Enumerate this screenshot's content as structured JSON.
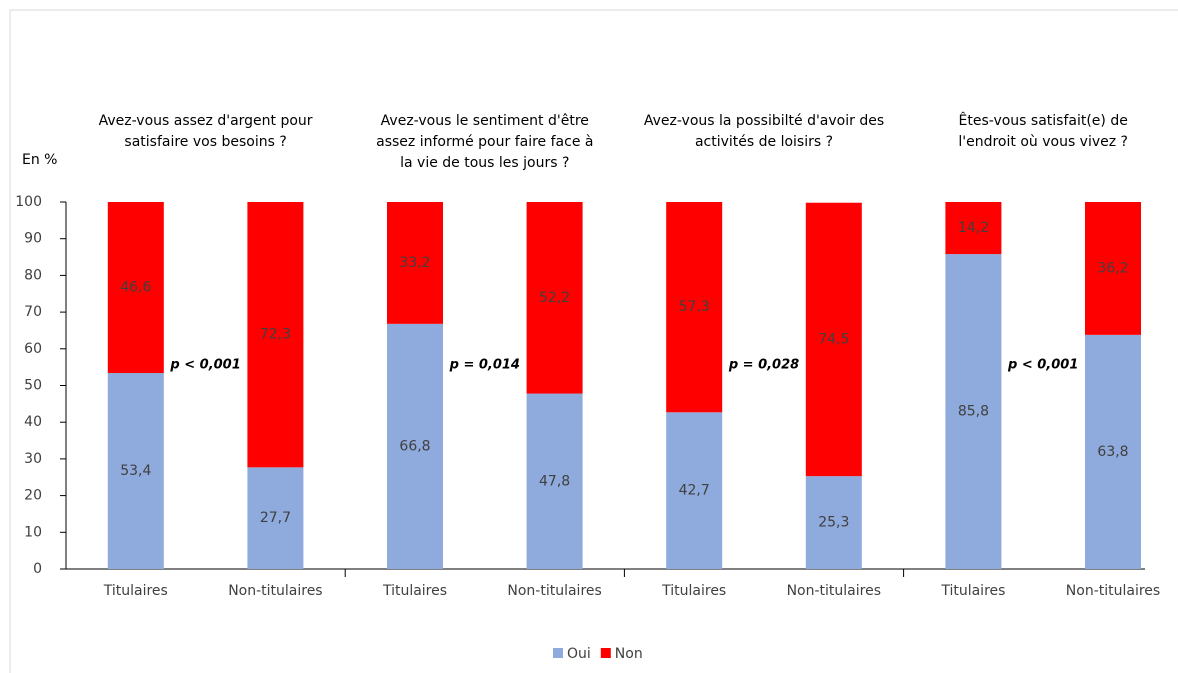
{
  "chart_data": {
    "type": "stacked_bar",
    "y_label": "En %",
    "categories": [
      "Titulaires",
      "Non-titulaires",
      "Titulaires",
      "Non-titulaires",
      "Titulaires",
      "Non-titulaires",
      "Titulaires",
      "Non-titulaires"
    ],
    "groups": [
      {
        "title": [
          "Avez-vous assez d'argent pour",
          "satisfaire vos besoins ?"
        ],
        "annotation": "p < 0,001"
      },
      {
        "title": [
          "Avez-vous le sentiment d'être",
          "assez informé pour faire face à",
          "la vie de tous les jours ?"
        ],
        "annotation": "p = 0,014"
      },
      {
        "title": [
          "Avez-vous la possibilté d'avoir des",
          "activités de loisirs ?"
        ],
        "annotation": "p = 0,028"
      },
      {
        "title": [
          "Êtes-vous satisfait(e) de",
          "l'endroit où vous vivez ?"
        ],
        "annotation": "p < 0,001"
      }
    ],
    "series": [
      {
        "name": "Oui",
        "color": "#8faadc",
        "values": [
          53.4,
          27.7,
          66.8,
          47.8,
          42.7,
          25.3,
          85.8,
          63.8
        ],
        "value_labels": [
          "53,4",
          "27,7",
          "66,8",
          "47,8",
          "42,7",
          "25,3",
          "85,8",
          "63,8"
        ]
      },
      {
        "name": "Non",
        "color": "#ff0000",
        "values": [
          46.6,
          72.3,
          33.2,
          52.2,
          57.3,
          74.5,
          14.2,
          36.2
        ],
        "value_labels": [
          "46,6",
          "72,3",
          "33,2",
          "52,2",
          "57,3",
          "74,5",
          "14,2",
          "36,2"
        ]
      }
    ],
    "ylim": [
      0,
      100
    ],
    "yticks": [
      0,
      10,
      20,
      30,
      40,
      50,
      60,
      70,
      80,
      90,
      100
    ],
    "legend": "bottom"
  }
}
